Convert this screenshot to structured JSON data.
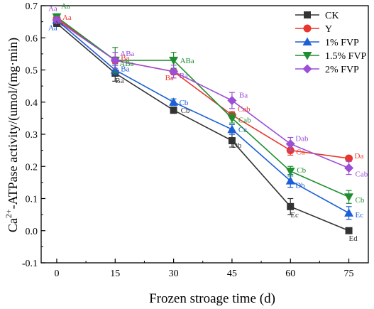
{
  "chart_data": {
    "type": "line",
    "xlabel": "Frozen stroage time (d)",
    "ylabel_parts": [
      "Ca",
      "2+",
      "-ATPase activity/(umol/(mg·min)"
    ],
    "x": [
      0,
      15,
      30,
      45,
      60,
      75
    ],
    "xlim": [
      -4,
      80
    ],
    "ylim": [
      -0.1,
      0.7
    ],
    "x_ticks": [
      "0",
      "15",
      "30",
      "45",
      "60",
      "75"
    ],
    "y_ticks": [
      "-0.1",
      "0.0",
      "0.1",
      "0.2",
      "0.3",
      "0.4",
      "0.5",
      "0.6",
      "0.7"
    ],
    "y_tick_values": [
      -0.1,
      0.0,
      0.1,
      0.2,
      0.3,
      0.4,
      0.5,
      0.6,
      0.7
    ],
    "legend_position": "top-right",
    "series": [
      {
        "name": "CK",
        "color": "#333333",
        "marker": "square",
        "values": [
          0.645,
          0.49,
          0.375,
          0.28,
          0.075,
          0.0
        ],
        "errors": [
          0.01,
          0.025,
          0.01,
          0.02,
          0.025,
          0.005
        ],
        "labels": [
          "Aa",
          "Ba",
          "Cb",
          "Db",
          "Ec",
          "Ed"
        ]
      },
      {
        "name": "Y",
        "color": "#e8372f",
        "marker": "circle",
        "values": [
          0.66,
          0.53,
          0.495,
          0.36,
          0.25,
          0.225
        ],
        "errors": [
          0.01,
          0.01,
          0.01,
          0.01,
          0.015,
          0.005
        ],
        "labels": [
          "Aa",
          "Ba",
          "Ba",
          "Cab",
          "Ca",
          "Da"
        ]
      },
      {
        "name": "1% FVP",
        "color": "#1c5fd6",
        "marker": "triangle-up",
        "values": [
          0.655,
          0.5,
          0.4,
          0.315,
          0.155,
          0.055
        ],
        "errors": [
          0.01,
          0.015,
          0.01,
          0.015,
          0.02,
          0.02
        ],
        "labels": [
          "Aa",
          "Ba",
          "Cb",
          "Cc",
          "Db",
          "Ec"
        ]
      },
      {
        "name": "1.5% FVP",
        "color": "#1e8e2e",
        "marker": "triangle-down",
        "values": [
          0.665,
          0.53,
          0.53,
          0.35,
          0.185,
          0.105
        ],
        "errors": [
          0.01,
          0.04,
          0.025,
          0.015,
          0.015,
          0.02
        ],
        "labels": [
          "Aa",
          "ABa",
          "ABa",
          "Cab",
          "Cb",
          "Cb"
        ]
      },
      {
        "name": "2% FVP",
        "color": "#9b4fd6",
        "marker": "diamond",
        "values": [
          0.655,
          0.53,
          0.495,
          0.405,
          0.27,
          0.195
        ],
        "errors": [
          0.01,
          0.025,
          0.02,
          0.025,
          0.02,
          0.02
        ],
        "labels": [
          "Aa",
          "ABa",
          "Ba",
          "Ba",
          "Dab",
          "Cab"
        ]
      }
    ]
  }
}
